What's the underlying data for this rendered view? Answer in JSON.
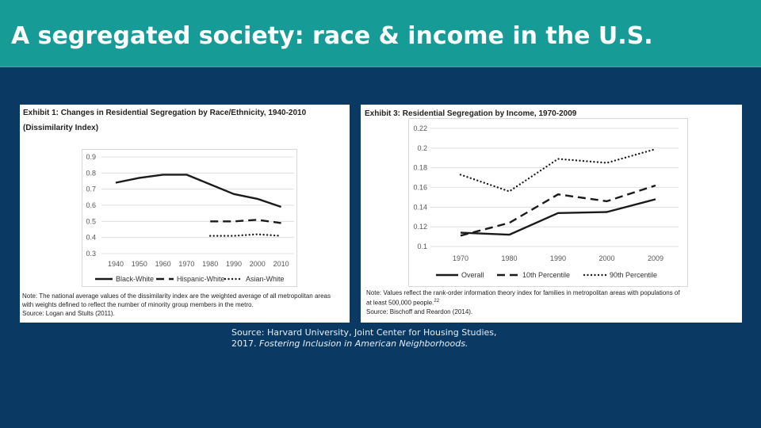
{
  "slide_title": "A segregated society: race & income in the U.S.",
  "colors": {
    "title_bar": "#179b96",
    "background": "#0a3a63",
    "series_line": "#1a1a1a"
  },
  "source": {
    "line1": "Source: Harvard University, Joint Center for Housing Studies,",
    "line2_prefix": "2017. ",
    "line2_italic": "Fostering Inclusion in American Neighborhoods."
  },
  "chart_data": [
    {
      "type": "line",
      "title": "Exhibit 1: Changes in Residential Segregation by Race/Ethnicity, 1940-2010 (Dissimilarity Index)",
      "x": [
        "1940",
        "1950",
        "1960",
        "1970",
        "1980",
        "1990",
        "2000",
        "2010"
      ],
      "ylim": [
        0.3,
        0.9
      ],
      "yticks": [
        "0.9",
        "0.8",
        "0.7",
        "0.6",
        "0.5",
        "0.4",
        "0.3"
      ],
      "grid": true,
      "legend_position": "bottom",
      "series": [
        {
          "name": "Black-White",
          "style": "solid",
          "values": [
            0.74,
            0.77,
            0.79,
            0.79,
            0.73,
            0.67,
            0.64,
            0.59
          ]
        },
        {
          "name": "Hispanic-White",
          "style": "dashed",
          "values": [
            null,
            null,
            null,
            null,
            0.5,
            0.5,
            0.51,
            0.49
          ]
        },
        {
          "name": "Asian-White",
          "style": "dotted",
          "values": [
            null,
            null,
            null,
            null,
            0.41,
            0.41,
            0.42,
            0.41
          ]
        }
      ],
      "note_lines": [
        "Note: The national average values of the dissimilarity index are the weighted average of all metropolitan areas",
        "with weights defined to reflect the number of minority group members in the metro.",
        "Source: Logan and Stults (2011)."
      ]
    },
    {
      "type": "line",
      "title": "Exhibit 3: Residential Segregation by Income, 1970-2009",
      "x": [
        "1970",
        "1980",
        "1990",
        "2000",
        "2009"
      ],
      "ylim": [
        0.1,
        0.22
      ],
      "yticks": [
        "0.22",
        "0.2",
        "0.18",
        "0.16",
        "0.14",
        "0.12",
        "0.1"
      ],
      "grid": true,
      "legend_position": "bottom",
      "series": [
        {
          "name": "Overall",
          "style": "solid",
          "values": [
            0.114,
            0.112,
            0.134,
            0.135,
            0.148
          ]
        },
        {
          "name": "10th Percentile",
          "style": "dashed",
          "values": [
            0.111,
            0.124,
            0.153,
            0.146,
            0.162
          ]
        },
        {
          "name": "90th Percentile",
          "style": "dotted",
          "values": [
            0.173,
            0.156,
            0.189,
            0.185,
            0.199
          ]
        }
      ],
      "note_lines": [
        "Note: Values reflect the rank-order information theory index for families in metropolitan areas with populations of",
        "at least 500,000 people.",
        "Source: Bischoff and Reardon (2014)."
      ],
      "note_superscript": "22"
    }
  ]
}
